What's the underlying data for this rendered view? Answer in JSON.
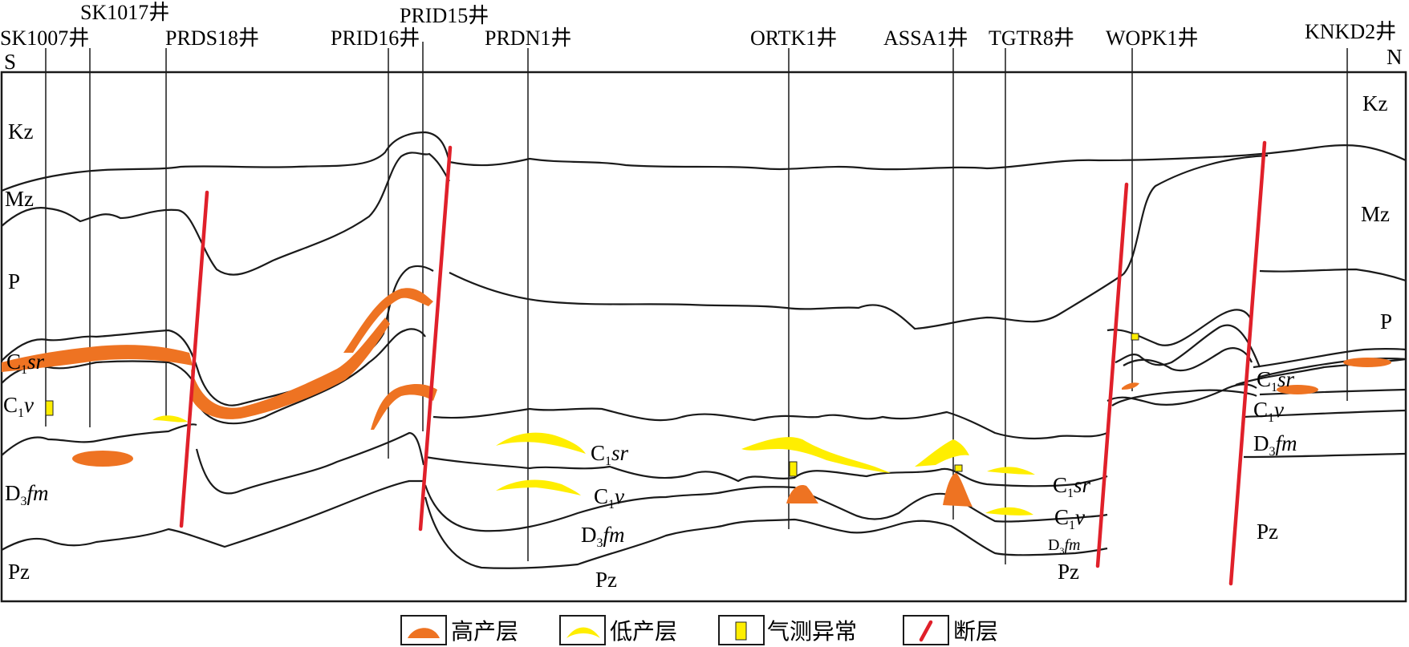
{
  "direction": {
    "south": "S",
    "north": "N"
  },
  "wells": [
    "SK1007井",
    "SK1017井",
    "PRDS18井",
    "PRID16井",
    "PRID15井",
    "PRDN1井",
    "ORTK1井",
    "ASSA1井",
    "TGTR8井",
    "WOPK1井",
    "KNKD2井"
  ],
  "formations": {
    "kz": "Kz",
    "mz": "Mz",
    "p": "P",
    "pz": "Pz",
    "c1sr_main": "C",
    "c1sr_sub": "1",
    "c1sr_it": "sr",
    "c1v_main": "C",
    "c1v_sub": "1",
    "c1v_it": "v",
    "d3fm_main": "D",
    "d3fm_sub": "3",
    "d3fm_it": "fm"
  },
  "legend": {
    "high": "高产层",
    "low": "低产层",
    "gas": "气测异常",
    "fault": "断层"
  },
  "colors": {
    "high_producing": "#ee7322",
    "low_producing": "#ffee00",
    "gas_anomaly": "#ffee00",
    "fault": "#e0202a"
  }
}
